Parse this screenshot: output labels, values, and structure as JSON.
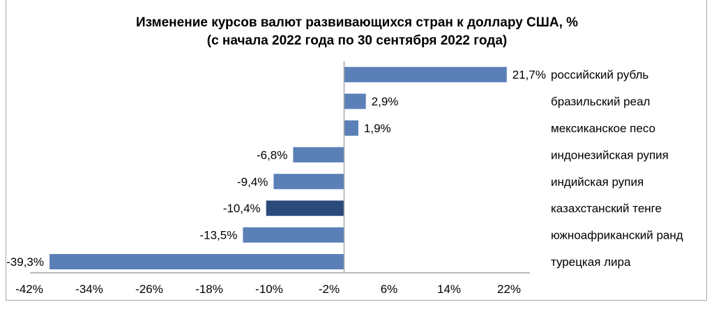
{
  "chart_data": {
    "type": "bar",
    "orientation": "horizontal",
    "title": "Изменение курсов валют развивающихся стран к доллару США, %",
    "subtitle": "(с начала 2022 года по 30 сентября 2022 года)",
    "categories": [
      "российский рубль",
      "бразильский реал",
      "мексиканское песо",
      "индонезийская рупия",
      "индийская рупия",
      "казахстанский тенге",
      "южноафриканский ранд",
      "турецкая лира"
    ],
    "values": [
      21.7,
      2.9,
      1.9,
      -6.8,
      -9.4,
      -10.4,
      -13.5,
      -39.3
    ],
    "data_labels": [
      "21,7%",
      "2,9%",
      "1,9%",
      "-6,8%",
      "-9,4%",
      "-10,4%",
      "-13,5%",
      "-39,3%"
    ],
    "highlight_index": 5,
    "colors": {
      "bar": "#5b80b8",
      "highlight": "#2b4a7c",
      "axis": "#a6a6a6"
    },
    "xlim": [
      -42,
      22
    ],
    "x_ticks": [
      -42,
      -34,
      -26,
      -18,
      -10,
      -2,
      6,
      14,
      22
    ],
    "x_tick_labels": [
      "-42%",
      "-34%",
      "-26%",
      "-18%",
      "-10%",
      "-2%",
      "6%",
      "14%",
      "22%"
    ],
    "xlabel": "",
    "ylabel": "",
    "grid": false,
    "legend": "none"
  }
}
